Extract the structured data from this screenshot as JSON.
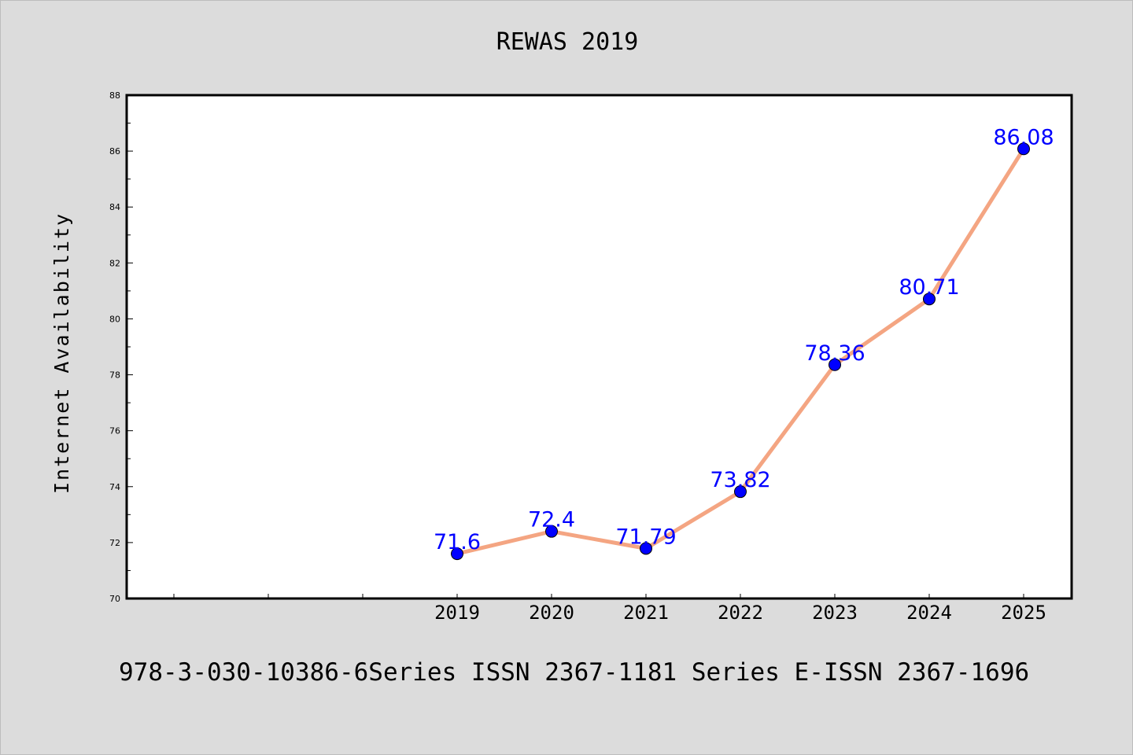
{
  "chart_data": {
    "type": "line",
    "title": "REWAS 2019",
    "xlabel": "",
    "ylabel": "Internet Availability",
    "footer": "978-3-030-10386-6Series ISSN 2367-1181 Series E-ISSN 2367-1696",
    "x": [
      "2019",
      "2020",
      "2021",
      "2022",
      "2023",
      "2024",
      "2025"
    ],
    "x_ticks": [
      "",
      "",
      "",
      "2019",
      "2020",
      "2021",
      "2022",
      "2023",
      "2024",
      "2025"
    ],
    "series": [
      {
        "values": [
          71.6,
          72.4,
          71.79,
          73.82,
          78.36,
          80.71,
          86.08
        ],
        "labels": [
          "71.6",
          "72.4",
          "71.79",
          "73.82",
          "78.36",
          "80.71",
          "86.08"
        ]
      }
    ],
    "ylim": [
      70,
      88
    ],
    "y_ticks": [
      "70",
      "72",
      "74",
      "76",
      "78",
      "80",
      "82",
      "84",
      "86",
      "88"
    ],
    "grid": false,
    "legend": "none",
    "colors": {
      "line": "#f4a582",
      "marker": "#0000ff",
      "label": "#0000ff",
      "background": "#dcdcdc",
      "plot_background": "#ffffff"
    }
  }
}
